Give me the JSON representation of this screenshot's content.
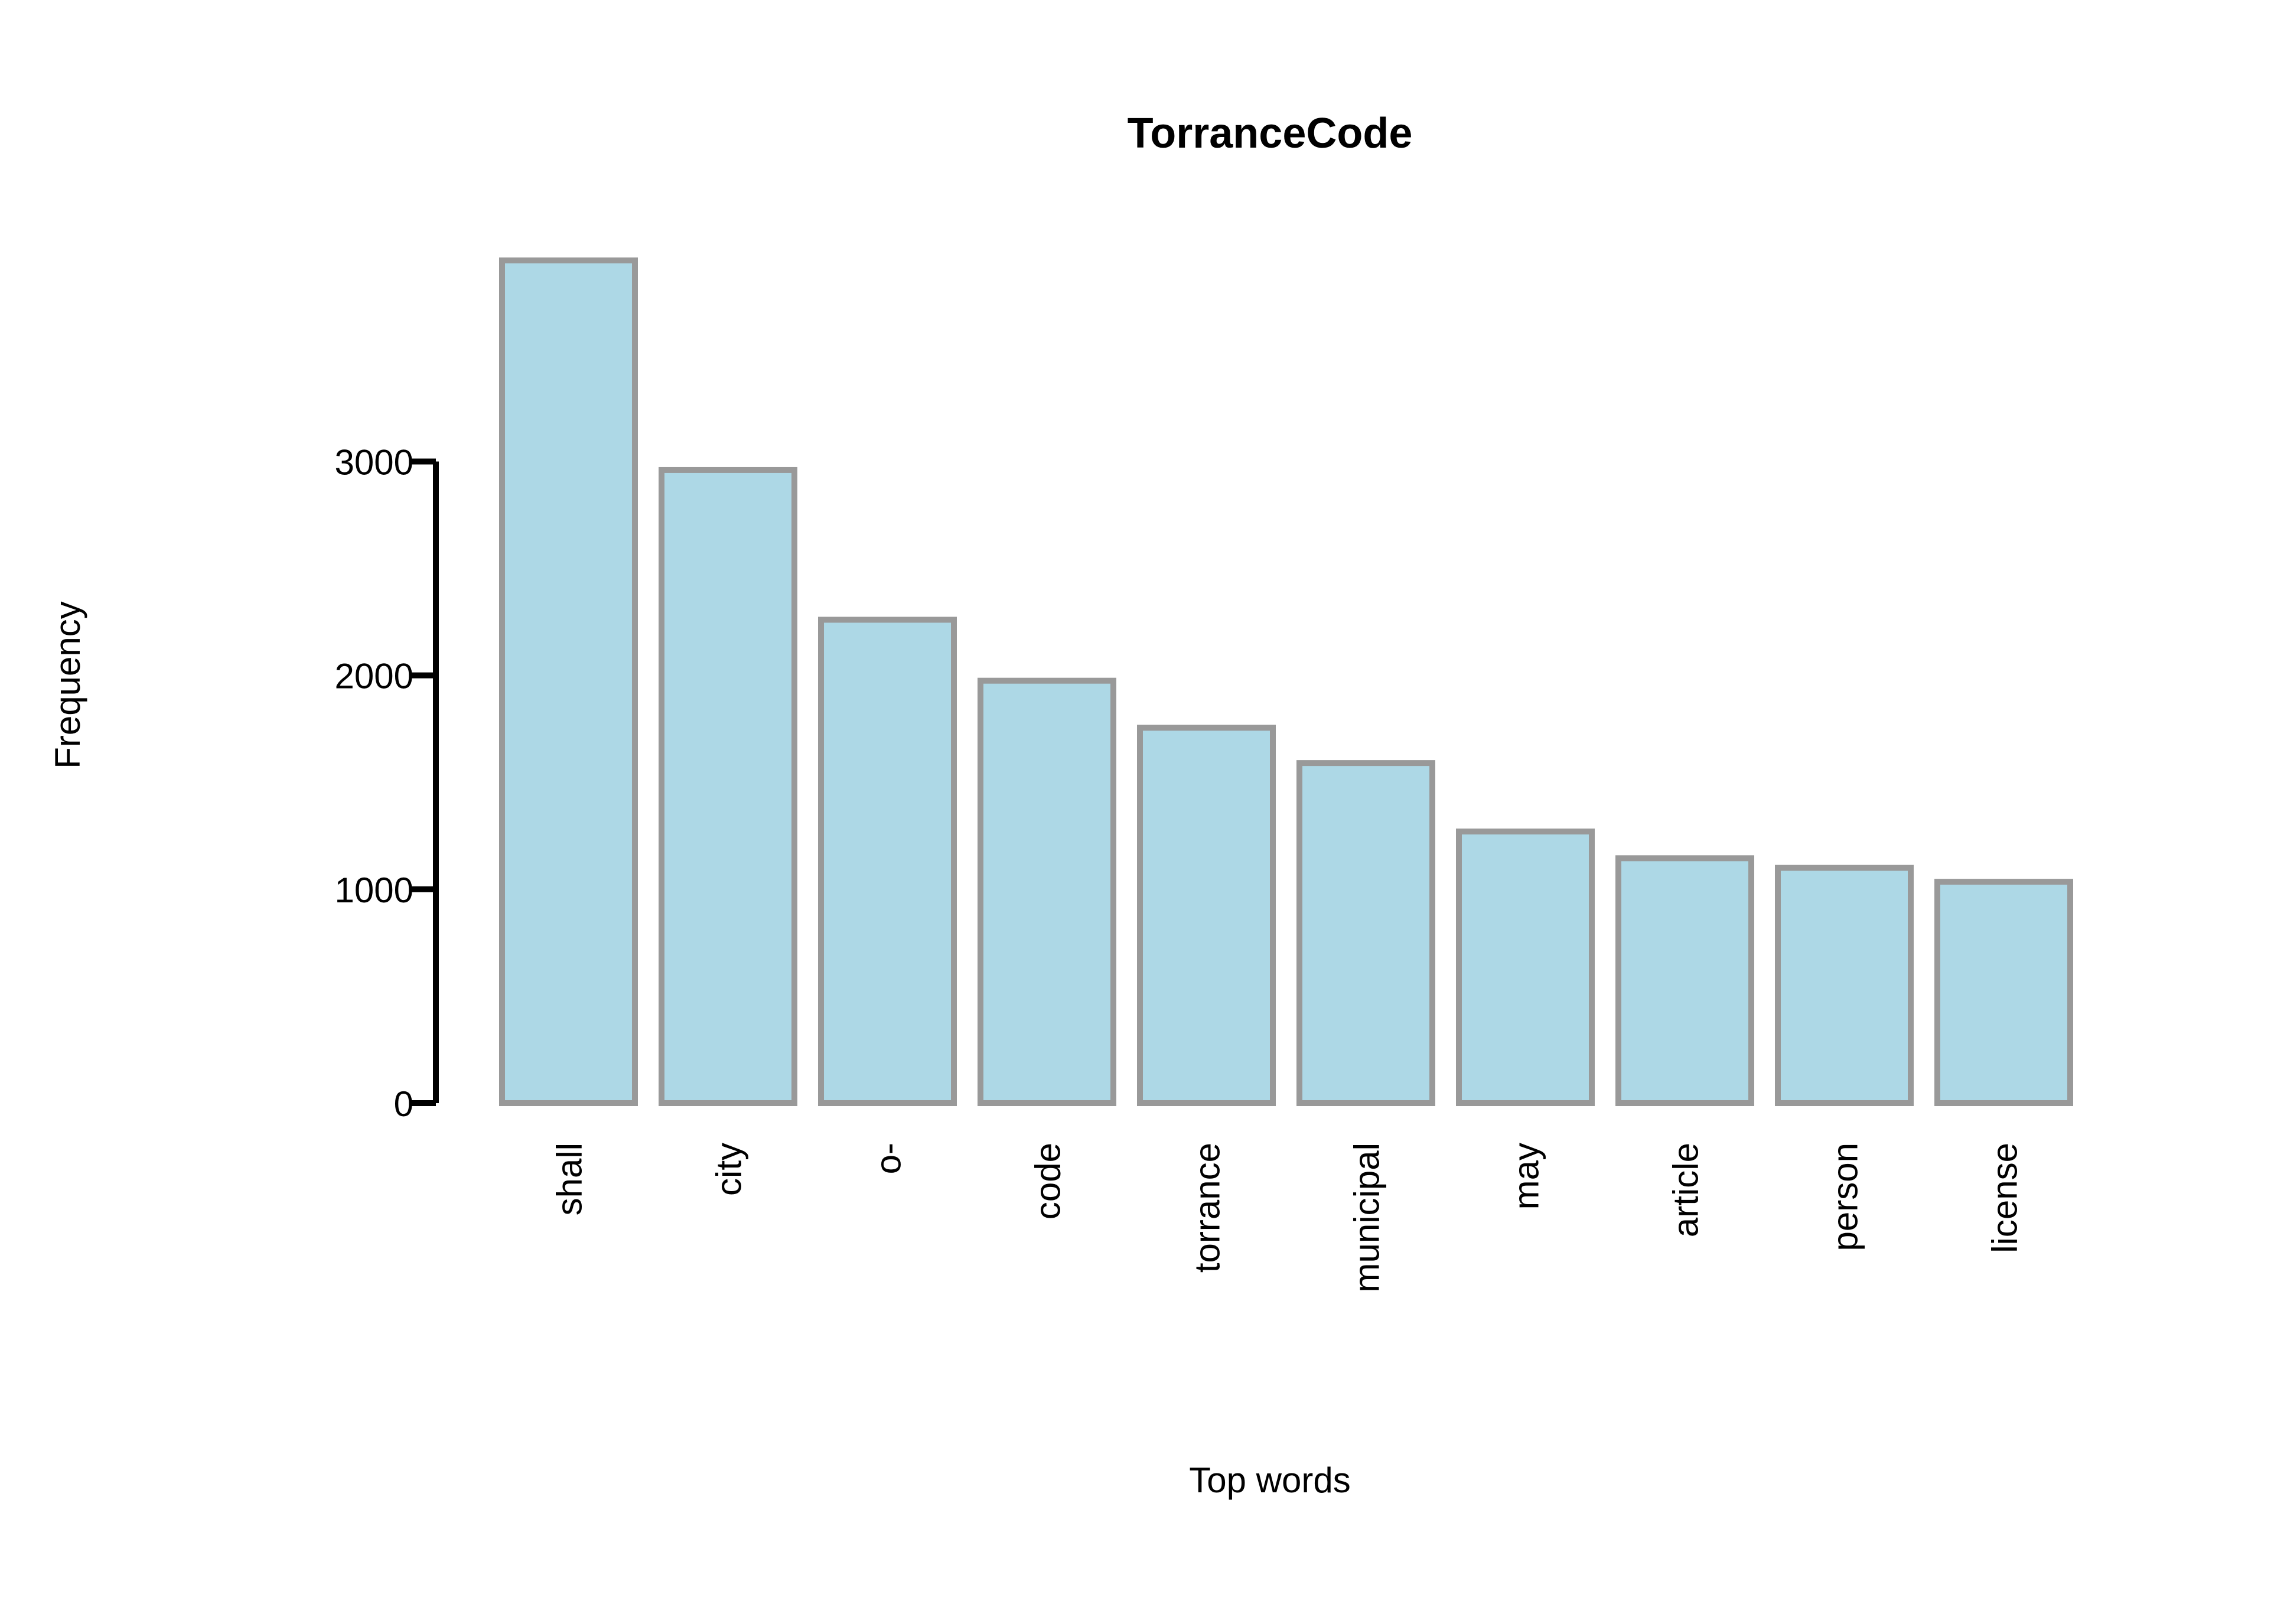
{
  "chart_data": {
    "type": "bar",
    "title": "TorranceCode",
    "xlabel": "Top words",
    "ylabel": "Frequency",
    "categories": [
      "shall",
      "city",
      "o-",
      "code",
      "torrance",
      "municipal",
      "may",
      "article",
      "person",
      "license"
    ],
    "values": [
      3940,
      2960,
      2260,
      1975,
      1755,
      1590,
      1270,
      1145,
      1100,
      1035
    ],
    "yticks": [
      0,
      1000,
      2000,
      3000
    ],
    "ylim": [
      0,
      3940
    ],
    "grid": false,
    "legend": "none",
    "colors": {
      "bar_fill": "#ADD8E6",
      "bar_stroke": "#999999",
      "axis": "#000000"
    }
  }
}
